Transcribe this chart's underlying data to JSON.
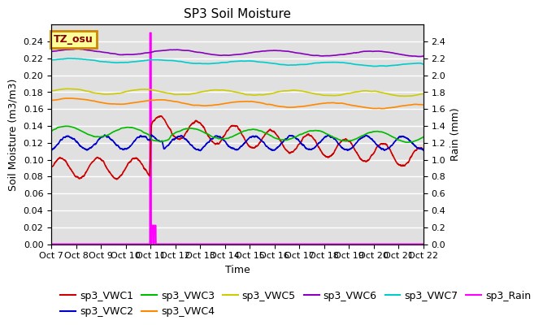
{
  "title": "SP3 Soil Moisture",
  "xlabel": "Time",
  "ylabel_left": "Soil Moisture (m3/m3)",
  "ylabel_right": "Rain (mm)",
  "annotation_text": "TZ_osu",
  "annotation_box_color": "#FFFF99",
  "annotation_border_color": "#CC8800",
  "ylim_left": [
    0.0,
    0.26
  ],
  "ylim_right": [
    0.0,
    2.6
  ],
  "background_color": "#E0E0E0",
  "x_start": 7,
  "x_end": 22,
  "x_ticks": [
    7,
    8,
    9,
    10,
    11,
    12,
    13,
    14,
    15,
    16,
    17,
    18,
    19,
    20,
    21,
    22
  ],
  "x_tick_labels": [
    "Oct 7",
    "Oct 8",
    "Oct 9",
    "Oct 10",
    "Oct 11",
    "Oct 12",
    "Oct 13",
    "Oct 14",
    "Oct 15",
    "Oct 16",
    "Oct 17",
    "Oct 18",
    "Oct 19",
    "Oct 20",
    "Oct 21",
    "Oct 22"
  ],
  "series": {
    "sp3_VWC1": {
      "color": "#CC0000",
      "label": "sp3_VWC1"
    },
    "sp3_VWC2": {
      "color": "#0000CC",
      "label": "sp3_VWC2"
    },
    "sp3_VWC3": {
      "color": "#00BB00",
      "label": "sp3_VWC3"
    },
    "sp3_VWC4": {
      "color": "#FF8800",
      "label": "sp3_VWC4"
    },
    "sp3_VWC5": {
      "color": "#CCCC00",
      "label": "sp3_VWC5"
    },
    "sp3_VWC6": {
      "color": "#8800BB",
      "label": "sp3_VWC6"
    },
    "sp3_VWC7": {
      "color": "#00CCCC",
      "label": "sp3_VWC7"
    },
    "sp3_Rain": {
      "color": "#FF00FF",
      "label": "sp3_Rain"
    }
  },
  "y_ticks_left": [
    0.0,
    0.02,
    0.04,
    0.06,
    0.08,
    0.1,
    0.12,
    0.14,
    0.16,
    0.18,
    0.2,
    0.22,
    0.24
  ],
  "y_ticks_right": [
    0.0,
    0.2,
    0.4,
    0.6,
    0.8,
    1.0,
    1.2,
    1.4,
    1.6,
    1.8,
    2.0,
    2.2,
    2.4
  ],
  "legend_fontsize": 9,
  "title_fontsize": 11,
  "axis_label_fontsize": 9,
  "tick_fontsize": 8
}
